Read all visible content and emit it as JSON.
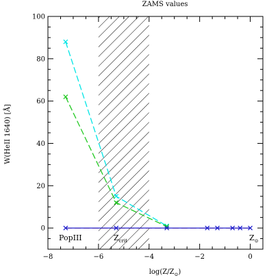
{
  "chart_data": {
    "type": "line",
    "title": "ZAMS values",
    "xlabel_main": "log(Z/Z",
    "xlabel_sub": "⊙",
    "xlabel_close": ")",
    "ylabel": "W(HeII 1640) [Å]",
    "xlim": [
      -8,
      0.5
    ],
    "ylim": [
      -10,
      100
    ],
    "x_ticks": [
      -8,
      -6,
      -4,
      -2,
      0
    ],
    "y_ticks": [
      0,
      20,
      40,
      60,
      80,
      100
    ],
    "x_tick_labels": [
      "−8",
      "−6",
      "−4",
      "−2",
      "0"
    ],
    "y_tick_labels": [
      "0",
      "20",
      "40",
      "60",
      "80",
      "100"
    ],
    "hatched_region": [
      -6,
      -4
    ],
    "series": [
      {
        "color": "#00e5e5",
        "style": "dashed",
        "marker": "x",
        "x": [
          -7.3,
          -5.3,
          -3.3
        ],
        "y": [
          88,
          15,
          1
        ]
      },
      {
        "color": "#22c922",
        "style": "dashed",
        "marker": "x",
        "x": [
          -7.3,
          -5.3,
          -3.3
        ],
        "y": [
          62,
          12,
          0.7
        ]
      },
      {
        "color": "#d62728",
        "style": "dashed",
        "marker": "none",
        "x": [
          -7.3,
          -5.3,
          -3.3,
          -1.7,
          -1.3,
          -0.7,
          -0.4,
          0
        ],
        "y": [
          0,
          0,
          0,
          0,
          0,
          0,
          0,
          0
        ]
      },
      {
        "color": "#1f1fcc",
        "style": "solid",
        "marker": "x",
        "x": [
          -7.3,
          -5.3,
          -3.3,
          -1.7,
          -1.3,
          -0.7,
          -0.4,
          0
        ],
        "y": [
          0,
          0,
          0,
          0,
          0,
          0,
          0,
          0
        ]
      }
    ],
    "annotations": {
      "popiii": "PopIII",
      "zcrit_main": "Z",
      "zcrit_sub": "crit",
      "zsun_main": "Z",
      "zsun_sub": "⊙"
    }
  }
}
